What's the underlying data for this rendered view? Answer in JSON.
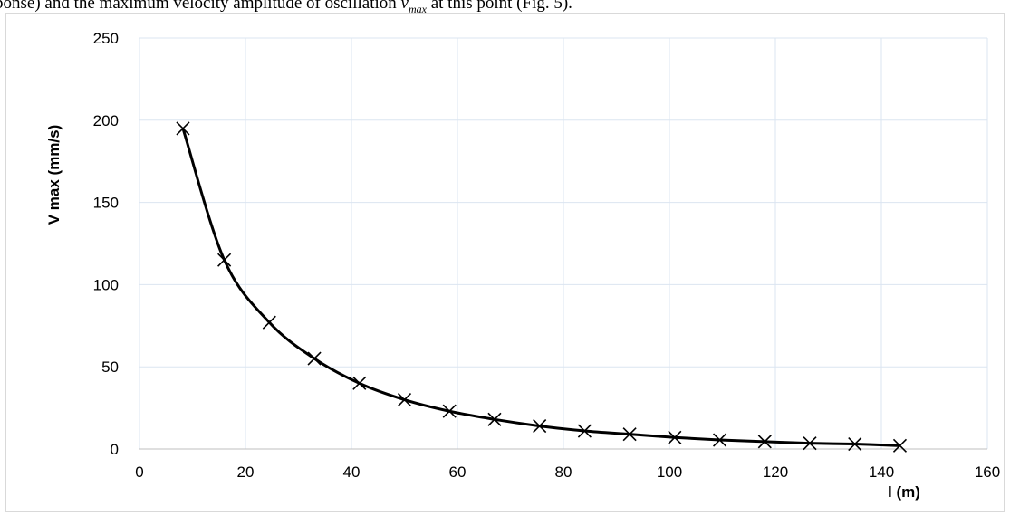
{
  "caption": {
    "prefix": "ponse) and the maximum velocity amplitude of oscillation ",
    "symbol": "v",
    "subscript": "max",
    "suffix": " at this point (Fig. 5)."
  },
  "chart_data": {
    "type": "line",
    "title": "",
    "xlabel": "l (m)",
    "ylabel": "V max (mm/s)",
    "xlim": [
      0,
      160
    ],
    "ylim": [
      0,
      250
    ],
    "x_ticks": [
      0,
      20,
      40,
      60,
      80,
      100,
      120,
      140,
      160
    ],
    "y_ticks": [
      0,
      50,
      100,
      150,
      200,
      250
    ],
    "grid": true,
    "legend": "none",
    "marker": "x",
    "line_color": "#000000",
    "grid_color": "#dbe5f1",
    "series": [
      {
        "x": [
          8.2,
          16.0,
          24.5,
          33.0,
          41.5,
          50.0,
          58.5,
          67.0,
          75.5,
          84.0,
          92.5,
          101.0,
          109.5,
          118.0,
          126.5,
          135.0,
          143.5
        ],
        "values": [
          195,
          115,
          77,
          55,
          40,
          30,
          23,
          18,
          14,
          11,
          9,
          7,
          5.5,
          4.5,
          3.5,
          3,
          2
        ]
      }
    ]
  }
}
